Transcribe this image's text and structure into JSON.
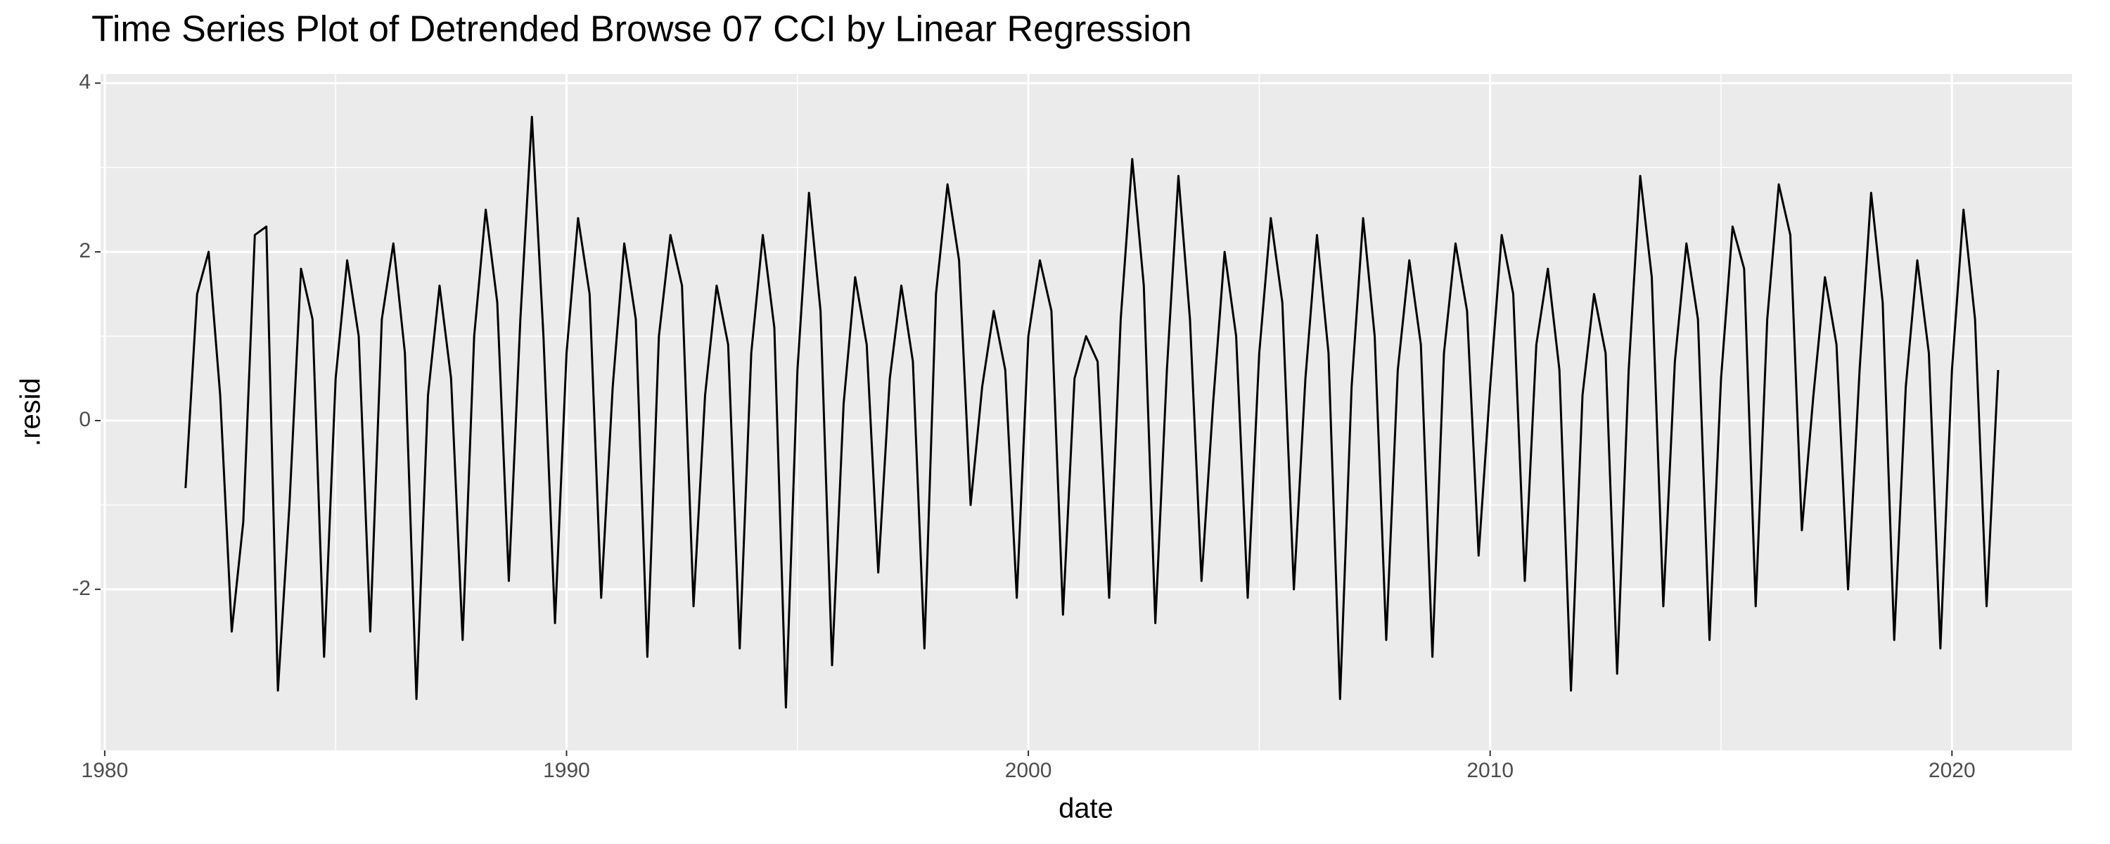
{
  "chart_data": {
    "type": "line",
    "title": "Time Series Plot of Detrended Browse 07 CCI by Linear Regression",
    "x_label": "date",
    "y_label": ".resid",
    "xlim": [
      1979.91,
      2022.6
    ],
    "ylim": [
      -3.91,
      4.11
    ],
    "xticks": [
      1980,
      1990,
      2000,
      2010,
      2020
    ],
    "yticks": [
      -2,
      0,
      2,
      4
    ],
    "grid": true,
    "panel_color": "#ebebeb",
    "x": [
      1981.75,
      1982,
      1982.25,
      1982.5,
      1982.75,
      1983,
      1983.25,
      1983.5,
      1983.75,
      1984,
      1984.25,
      1984.5,
      1984.75,
      1985,
      1985.25,
      1985.5,
      1985.75,
      1986,
      1986.25,
      1986.5,
      1986.75,
      1987,
      1987.25,
      1987.5,
      1987.75,
      1988,
      1988.25,
      1988.5,
      1988.75,
      1989,
      1989.25,
      1989.5,
      1989.75,
      1990,
      1990.25,
      1990.5,
      1990.75,
      1991,
      1991.25,
      1991.5,
      1991.75,
      1992,
      1992.25,
      1992.5,
      1992.75,
      1993,
      1993.25,
      1993.5,
      1993.75,
      1994,
      1994.25,
      1994.5,
      1994.75,
      1995,
      1995.25,
      1995.5,
      1995.75,
      1996,
      1996.25,
      1996.5,
      1996.75,
      1997,
      1997.25,
      1997.5,
      1997.75,
      1998,
      1998.25,
      1998.5,
      1998.75,
      1999,
      1999.25,
      1999.5,
      1999.75,
      2000,
      2000.25,
      2000.5,
      2000.75,
      2001,
      2001.25,
      2001.5,
      2001.75,
      2002,
      2002.25,
      2002.5,
      2002.75,
      2003,
      2003.25,
      2003.5,
      2003.75,
      2004,
      2004.25,
      2004.5,
      2004.75,
      2005,
      2005.25,
      2005.5,
      2005.75,
      2006,
      2006.25,
      2006.5,
      2006.75,
      2007,
      2007.25,
      2007.5,
      2007.75,
      2008,
      2008.25,
      2008.5,
      2008.75,
      2009,
      2009.25,
      2009.5,
      2009.75,
      2010,
      2010.25,
      2010.5,
      2010.75,
      2011,
      2011.25,
      2011.5,
      2011.75,
      2012,
      2012.25,
      2012.5,
      2012.75,
      2013,
      2013.25,
      2013.5,
      2013.75,
      2014,
      2014.25,
      2014.5,
      2014.75,
      2015,
      2015.25,
      2015.5,
      2015.75,
      2016,
      2016.25,
      2016.5,
      2016.75,
      2017,
      2017.25,
      2017.5,
      2017.75,
      2018,
      2018.25,
      2018.5,
      2018.75,
      2019,
      2019.25,
      2019.5,
      2019.75,
      2020,
      2020.25,
      2020.5,
      2020.75,
      2021
    ],
    "series": [
      {
        "color": "#000000",
        "values": [
          -0.8,
          1.5,
          2.0,
          0.3,
          -2.5,
          -1.2,
          2.2,
          2.3,
          -3.2,
          -1.0,
          1.8,
          1.2,
          -2.8,
          0.5,
          1.9,
          1.0,
          -2.5,
          1.2,
          2.1,
          0.8,
          -3.3,
          0.3,
          1.6,
          0.5,
          -2.6,
          1.0,
          2.5,
          1.4,
          -1.9,
          1.2,
          3.6,
          1.0,
          -2.4,
          0.8,
          2.4,
          1.5,
          -2.1,
          0.4,
          2.1,
          1.2,
          -2.8,
          1.0,
          2.2,
          1.6,
          -2.2,
          0.3,
          1.6,
          0.9,
          -2.7,
          0.8,
          2.2,
          1.1,
          -3.4,
          0.6,
          2.7,
          1.3,
          -2.9,
          0.2,
          1.7,
          0.9,
          -1.8,
          0.5,
          1.6,
          0.7,
          -2.7,
          1.5,
          2.8,
          1.9,
          -1.0,
          0.4,
          1.3,
          0.6,
          -2.1,
          1.0,
          1.9,
          1.3,
          -2.3,
          0.5,
          1.0,
          0.7,
          -2.1,
          1.2,
          3.1,
          1.6,
          -2.4,
          0.6,
          2.9,
          1.2,
          -1.9,
          0.2,
          2.0,
          1.0,
          -2.1,
          0.8,
          2.4,
          1.4,
          -2.0,
          0.5,
          2.2,
          0.8,
          -3.3,
          0.4,
          2.4,
          1.0,
          -2.6,
          0.6,
          1.9,
          0.9,
          -2.8,
          0.8,
          2.1,
          1.3,
          -1.6,
          0.4,
          2.2,
          1.5,
          -1.9,
          0.9,
          1.8,
          0.6,
          -3.2,
          0.3,
          1.5,
          0.8,
          -3.0,
          0.6,
          2.9,
          1.7,
          -2.2,
          0.7,
          2.1,
          1.2,
          -2.6,
          0.5,
          2.3,
          1.8,
          -2.2,
          1.2,
          2.8,
          2.2,
          -1.3,
          0.3,
          1.7,
          0.9,
          -2.0,
          0.6,
          2.7,
          1.4,
          -2.6,
          0.4,
          1.9,
          0.8,
          -2.7,
          0.6,
          2.5,
          1.2,
          -2.2,
          0.6
        ]
      }
    ]
  }
}
